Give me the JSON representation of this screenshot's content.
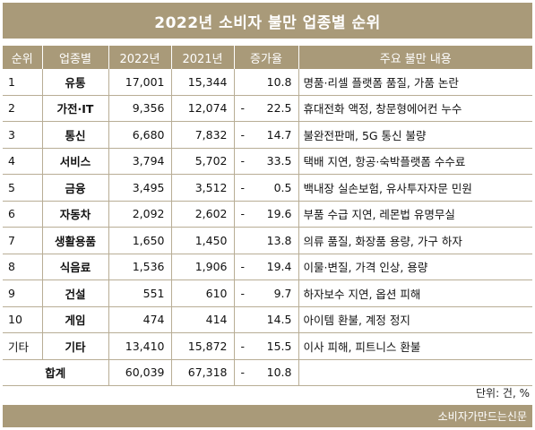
{
  "title": "2022년 소비자 불만 업종별 순위",
  "headers": [
    "순위",
    "업종별",
    "2022년",
    "2021년",
    "증가율",
    "주요 불만 내용"
  ],
  "rows": [
    {
      "rank": "1",
      "industry": "유통",
      "y2022": "17,001",
      "y2021": "15,344",
      "sign": "",
      "rate": "10.8",
      "content": "명품·리셀 플랫폼 품질, 가품 논란"
    },
    {
      "rank": "2",
      "industry": "가전·IT",
      "y2022": "9,356",
      "y2021": "12,074",
      "sign": "-",
      "rate": "22.5",
      "content": "휴대전화 액정, 창문형에어컨 누수"
    },
    {
      "rank": "3",
      "industry": "통신",
      "y2022": "6,680",
      "y2021": "7,832",
      "sign": "-",
      "rate": "14.7",
      "content": "불완전판매, 5G 통신 불량"
    },
    {
      "rank": "4",
      "industry": "서비스",
      "y2022": "3,794",
      "y2021": "5,702",
      "sign": "-",
      "rate": "33.5",
      "content": "택배 지연, 항공·숙박플랫폼 수수료"
    },
    {
      "rank": "5",
      "industry": "금융",
      "y2022": "3,495",
      "y2021": "3,512",
      "sign": "-",
      "rate": "0.5",
      "content": "백내장 실손보험, 유사투자자문 민원"
    },
    {
      "rank": "6",
      "industry": "자동차",
      "y2022": "2,092",
      "y2021": "2,602",
      "sign": "-",
      "rate": "19.6",
      "content": "부품 수급 지연, 레몬법 유명무실"
    },
    {
      "rank": "7",
      "industry": "생활용품",
      "y2022": "1,650",
      "y2021": "1,450",
      "sign": "",
      "rate": "13.8",
      "content": "의류 품질, 화장품 용량, 가구 하자"
    },
    {
      "rank": "8",
      "industry": "식음료",
      "y2022": "1,536",
      "y2021": "1,906",
      "sign": "-",
      "rate": "19.4",
      "content": "이물·변질, 가격 인상, 용량"
    },
    {
      "rank": "9",
      "industry": "건설",
      "y2022": "551",
      "y2021": "610",
      "sign": "-",
      "rate": "9.7",
      "content": "하자보수 지연, 옵션 피해"
    },
    {
      "rank": "10",
      "industry": "게임",
      "y2022": "474",
      "y2021": "414",
      "sign": "",
      "rate": "14.5",
      "content": "아이템 환불, 계정 정지"
    },
    {
      "rank": "기타",
      "industry": "기타",
      "y2022": "13,410",
      "y2021": "15,872",
      "sign": "-",
      "rate": "15.5",
      "content": "이사 피해, 피트니스 환불"
    }
  ],
  "total": {
    "label": "합계",
    "y2022": "60,039",
    "y2021": "67,318",
    "sign": "-",
    "rate": "10.8",
    "content": ""
  },
  "unit": "단위: 건, %",
  "footer": "소비자가만드는신문"
}
